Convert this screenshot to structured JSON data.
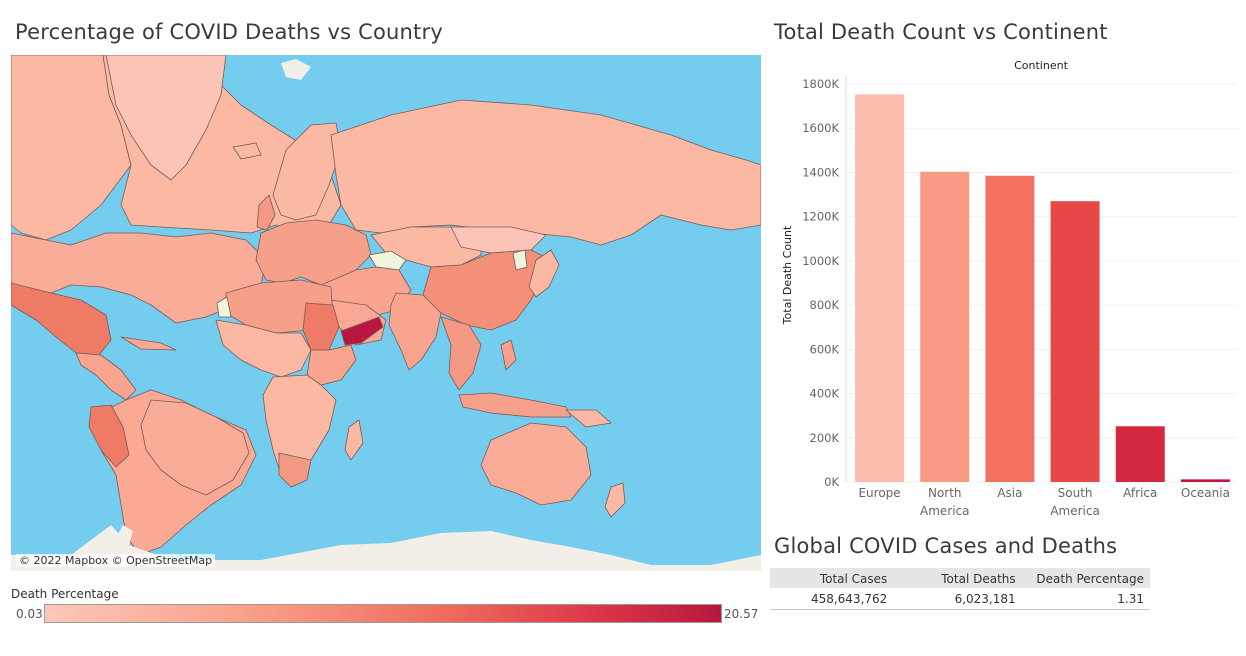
{
  "map": {
    "title": "Percentage of COVID Deaths vs Country",
    "attribution": "© 2022 Mapbox © OpenStreetMap",
    "colors": {
      "ocean": "#74cdee",
      "land_low": "#fbb9a4",
      "land_mid": "#f49079",
      "land_high": "#b8183f",
      "ice": "#f2efe9",
      "no_data": "#eef5dc"
    },
    "legend": {
      "title": "Death Percentage",
      "min": "0.03",
      "max": "20.57",
      "min_value": 0.03,
      "max_value": 20.57
    }
  },
  "bar_chart": {
    "title": "Total Death Count vs Continent",
    "header": "Continent",
    "ylabel": "Total Death Count"
  },
  "chart_data": {
    "type": "bar",
    "categories": [
      "Europe",
      "North America",
      "Asia",
      "South America",
      "Africa",
      "Oceania"
    ],
    "category_lines": [
      [
        "Europe"
      ],
      [
        "North",
        "America"
      ],
      [
        "Asia"
      ],
      [
        "South",
        "America"
      ],
      [
        "Africa"
      ],
      [
        "Oceania"
      ]
    ],
    "values": [
      1753000,
      1403000,
      1385000,
      1270000,
      252000,
      12000
    ],
    "bar_colors": [
      "#fcbcae",
      "#f99a85",
      "#f2715f",
      "#e84948",
      "#d3283f",
      "#c0173f"
    ],
    "ylim": [
      0,
      1800000
    ],
    "yticks": [
      0,
      200000,
      400000,
      600000,
      800000,
      1000000,
      1200000,
      1400000,
      1600000,
      1800000
    ],
    "ytick_labels": [
      "0K",
      "200K",
      "400K",
      "600K",
      "800K",
      "1000K",
      "1200K",
      "1400K",
      "1600K",
      "1800K"
    ],
    "title": "Total Death Count vs Continent",
    "xlabel": "Continent",
    "ylabel": "Total Death Count"
  },
  "summary": {
    "title": "Global COVID Cases and Deaths",
    "headers": {
      "cases": "Total Cases",
      "deaths": "Total Deaths",
      "percentage": "Death Percentage"
    },
    "row": {
      "cases": "458,643,762",
      "deaths": "6,023,181",
      "percentage": "1.31"
    }
  }
}
